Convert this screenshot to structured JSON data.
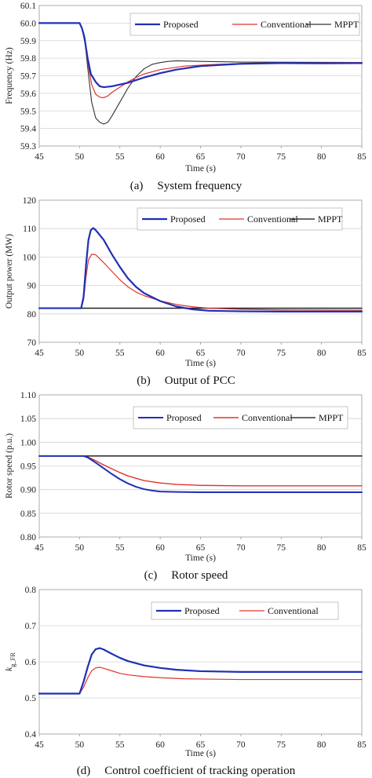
{
  "chart_data": [
    {
      "type": "line",
      "caption_label": "(a)",
      "caption": "System frequency",
      "xlabel": "Time (s)",
      "ylabel": "Frequency (Hz)",
      "xlim": [
        45,
        85
      ],
      "ylim": [
        59.3,
        60.1
      ],
      "xticks": [
        "45",
        "50",
        "55",
        "60",
        "65",
        "70",
        "75",
        "80",
        "85"
      ],
      "yticks": [
        "59.3",
        "59.4",
        "59.5",
        "59.6",
        "59.7",
        "59.8",
        "59.9",
        "60.0",
        "60.1"
      ],
      "grid": true,
      "legend_position": "top-right",
      "series": [
        {
          "name": "Proposed",
          "color": "#1f2fb5",
          "width": 2.2,
          "points": [
            [
              45,
              60.0
            ],
            [
              50,
              60.0
            ],
            [
              50.3,
              59.97
            ],
            [
              50.6,
              59.92
            ],
            [
              51,
              59.8
            ],
            [
              51.4,
              59.71
            ],
            [
              52,
              59.665
            ],
            [
              52.5,
              59.64
            ],
            [
              53,
              59.635
            ],
            [
              54,
              59.64
            ],
            [
              55,
              59.65
            ],
            [
              56,
              59.66
            ],
            [
              57,
              59.675
            ],
            [
              58,
              59.69
            ],
            [
              60,
              59.715
            ],
            [
              62,
              59.735
            ],
            [
              65,
              59.755
            ],
            [
              70,
              59.768
            ],
            [
              75,
              59.772
            ],
            [
              80,
              59.771
            ],
            [
              85,
              59.772
            ]
          ]
        },
        {
          "name": "Conventional",
          "color": "#e0342b",
          "width": 1.2,
          "points": [
            [
              45,
              60.0
            ],
            [
              50,
              60.0
            ],
            [
              50.3,
              59.97
            ],
            [
              50.6,
              59.91
            ],
            [
              51,
              59.78
            ],
            [
              51.5,
              59.65
            ],
            [
              52,
              59.595
            ],
            [
              52.5,
              59.578
            ],
            [
              53,
              59.575
            ],
            [
              53.5,
              59.585
            ],
            [
              54,
              59.605
            ],
            [
              55,
              59.635
            ],
            [
              56,
              59.665
            ],
            [
              57,
              59.69
            ],
            [
              58,
              59.71
            ],
            [
              60,
              59.735
            ],
            [
              63,
              59.755
            ],
            [
              67,
              59.765
            ],
            [
              72,
              59.772
            ],
            [
              85,
              59.775
            ]
          ]
        },
        {
          "name": "MPPT",
          "color": "#333333",
          "width": 1.1,
          "points": [
            [
              45,
              60.0
            ],
            [
              50,
              60.0
            ],
            [
              50.3,
              59.97
            ],
            [
              50.7,
              59.88
            ],
            [
              51,
              59.75
            ],
            [
              51.5,
              59.55
            ],
            [
              52,
              59.46
            ],
            [
              52.5,
              59.435
            ],
            [
              53,
              59.425
            ],
            [
              53.5,
              59.435
            ],
            [
              54,
              59.47
            ],
            [
              55,
              59.55
            ],
            [
              56,
              59.63
            ],
            [
              57,
              59.695
            ],
            [
              58,
              59.74
            ],
            [
              59,
              59.765
            ],
            [
              60,
              59.775
            ],
            [
              61,
              59.782
            ],
            [
              62,
              59.785
            ],
            [
              65,
              59.782
            ],
            [
              70,
              59.778
            ],
            [
              85,
              59.776
            ]
          ]
        }
      ]
    },
    {
      "type": "line",
      "caption_label": "(b)",
      "caption": "Output of PCC",
      "xlabel": "Time (s)",
      "ylabel": "Output power (MW)",
      "xlim": [
        45,
        85
      ],
      "ylim": [
        70,
        120
      ],
      "xticks": [
        "45",
        "50",
        "55",
        "60",
        "65",
        "70",
        "75",
        "80",
        "85"
      ],
      "yticks": [
        "70",
        "80",
        "90",
        "100",
        "110",
        "120"
      ],
      "grid": true,
      "legend_position": "top-right",
      "series": [
        {
          "name": "Proposed",
          "color": "#1f2fb5",
          "width": 2.2,
          "points": [
            [
              45,
              82
            ],
            [
              50.2,
              82
            ],
            [
              50.5,
              86
            ],
            [
              50.8,
              97
            ],
            [
              51.1,
              106
            ],
            [
              51.4,
              109.5
            ],
            [
              51.7,
              110.2
            ],
            [
              52,
              109.5
            ],
            [
              53,
              106
            ],
            [
              54,
              101
            ],
            [
              55,
              96.5
            ],
            [
              56,
              92.5
            ],
            [
              57,
              89.5
            ],
            [
              58,
              87.3
            ],
            [
              60,
              84.5
            ],
            [
              62,
              82.6
            ],
            [
              64,
              81.6
            ],
            [
              66,
              81.1
            ],
            [
              70,
              80.9
            ],
            [
              75,
              80.8
            ],
            [
              85,
              80.8
            ]
          ]
        },
        {
          "name": "Conventional",
          "color": "#e0342b",
          "width": 1.2,
          "points": [
            [
              45,
              82
            ],
            [
              50.2,
              82
            ],
            [
              50.5,
              85
            ],
            [
              50.8,
              93
            ],
            [
              51.1,
              99
            ],
            [
              51.5,
              101
            ],
            [
              52,
              100.8
            ],
            [
              53,
              98
            ],
            [
              54,
              95
            ],
            [
              55,
              92
            ],
            [
              56,
              89.5
            ],
            [
              57,
              87.7
            ],
            [
              58,
              86.4
            ],
            [
              60,
              84.6
            ],
            [
              62,
              83.3
            ],
            [
              64,
              82.5
            ],
            [
              66,
              82
            ],
            [
              70,
              81.6
            ],
            [
              75,
              81.4
            ],
            [
              85,
              81.3
            ]
          ]
        },
        {
          "name": "MPPT",
          "color": "#111111",
          "width": 1.3,
          "points": [
            [
              45,
              82
            ],
            [
              85,
              82
            ]
          ]
        }
      ]
    },
    {
      "type": "line",
      "caption_label": "(c)",
      "caption": "Rotor speed",
      "xlabel": "Time (s)",
      "ylabel": "Rotor speed (p.u.)",
      "xlim": [
        45,
        85
      ],
      "ylim": [
        0.8,
        1.1
      ],
      "xticks": [
        "45",
        "50",
        "55",
        "60",
        "65",
        "70",
        "75",
        "80",
        "85"
      ],
      "yticks": [
        "0.80",
        "0.85",
        "0.90",
        "0.95",
        "1.00",
        "1.05",
        "1.10"
      ],
      "grid": true,
      "legend_position": "top-right",
      "series": [
        {
          "name": "Proposed",
          "color": "#1f2fb5",
          "width": 2.0,
          "points": [
            [
              45,
              0.971
            ],
            [
              50.5,
              0.971
            ],
            [
              51,
              0.968
            ],
            [
              52,
              0.957
            ],
            [
              53,
              0.945
            ],
            [
              54,
              0.933
            ],
            [
              55,
              0.922
            ],
            [
              56,
              0.913
            ],
            [
              57,
              0.906
            ],
            [
              58,
              0.901
            ],
            [
              59,
              0.898
            ],
            [
              60,
              0.896
            ],
            [
              62,
              0.895
            ],
            [
              65,
              0.8945
            ],
            [
              85,
              0.8945
            ]
          ]
        },
        {
          "name": "Conventional",
          "color": "#e0342b",
          "width": 1.4,
          "points": [
            [
              45,
              0.971
            ],
            [
              50.5,
              0.971
            ],
            [
              51,
              0.969
            ],
            [
              52,
              0.961
            ],
            [
              53,
              0.952
            ],
            [
              54,
              0.944
            ],
            [
              55,
              0.936
            ],
            [
              56,
              0.929
            ],
            [
              57,
              0.924
            ],
            [
              58,
              0.919
            ],
            [
              60,
              0.914
            ],
            [
              62,
              0.911
            ],
            [
              65,
              0.909
            ],
            [
              70,
              0.908
            ],
            [
              85,
              0.908
            ]
          ]
        },
        {
          "name": "MPPT",
          "color": "#111111",
          "width": 1.3,
          "points": [
            [
              45,
              0.971
            ],
            [
              85,
              0.971
            ]
          ]
        }
      ]
    },
    {
      "type": "line",
      "caption_label": "(d)",
      "caption": "Control coefficient of tracking operation",
      "xlabel": "Time (s)",
      "ylabel": "k",
      "ylabel_subscript": "g_FR",
      "xlim": [
        45,
        85
      ],
      "ylim": [
        0.4,
        0.8
      ],
      "xticks": [
        "45",
        "50",
        "55",
        "60",
        "65",
        "70",
        "75",
        "80",
        "85"
      ],
      "yticks": [
        "0.4",
        "0.5",
        "0.6",
        "0.7",
        "0.8"
      ],
      "grid": true,
      "legend_position": "top-right",
      "series": [
        {
          "name": "Proposed",
          "color": "#1f2fb5",
          "width": 2.2,
          "points": [
            [
              45,
              0.512
            ],
            [
              50,
              0.512
            ],
            [
              50.5,
              0.545
            ],
            [
              51,
              0.585
            ],
            [
              51.5,
              0.62
            ],
            [
              52,
              0.635
            ],
            [
              52.5,
              0.638
            ],
            [
              53,
              0.634
            ],
            [
              54,
              0.622
            ],
            [
              55,
              0.611
            ],
            [
              56,
              0.602
            ],
            [
              58,
              0.59
            ],
            [
              60,
              0.583
            ],
            [
              62,
              0.578
            ],
            [
              65,
              0.574
            ],
            [
              70,
              0.572
            ],
            [
              85,
              0.572
            ]
          ]
        },
        {
          "name": "Conventional",
          "color": "#e0342b",
          "width": 1.2,
          "points": [
            [
              45,
              0.512
            ],
            [
              50,
              0.512
            ],
            [
              50.5,
              0.53
            ],
            [
              51,
              0.555
            ],
            [
              51.5,
              0.575
            ],
            [
              52,
              0.583
            ],
            [
              52.5,
              0.585
            ],
            [
              53,
              0.582
            ],
            [
              54,
              0.575
            ],
            [
              55,
              0.568
            ],
            [
              56,
              0.564
            ],
            [
              58,
              0.559
            ],
            [
              60,
              0.556
            ],
            [
              63,
              0.553
            ],
            [
              66,
              0.552
            ],
            [
              70,
              0.551
            ],
            [
              85,
              0.551
            ]
          ]
        }
      ]
    }
  ]
}
